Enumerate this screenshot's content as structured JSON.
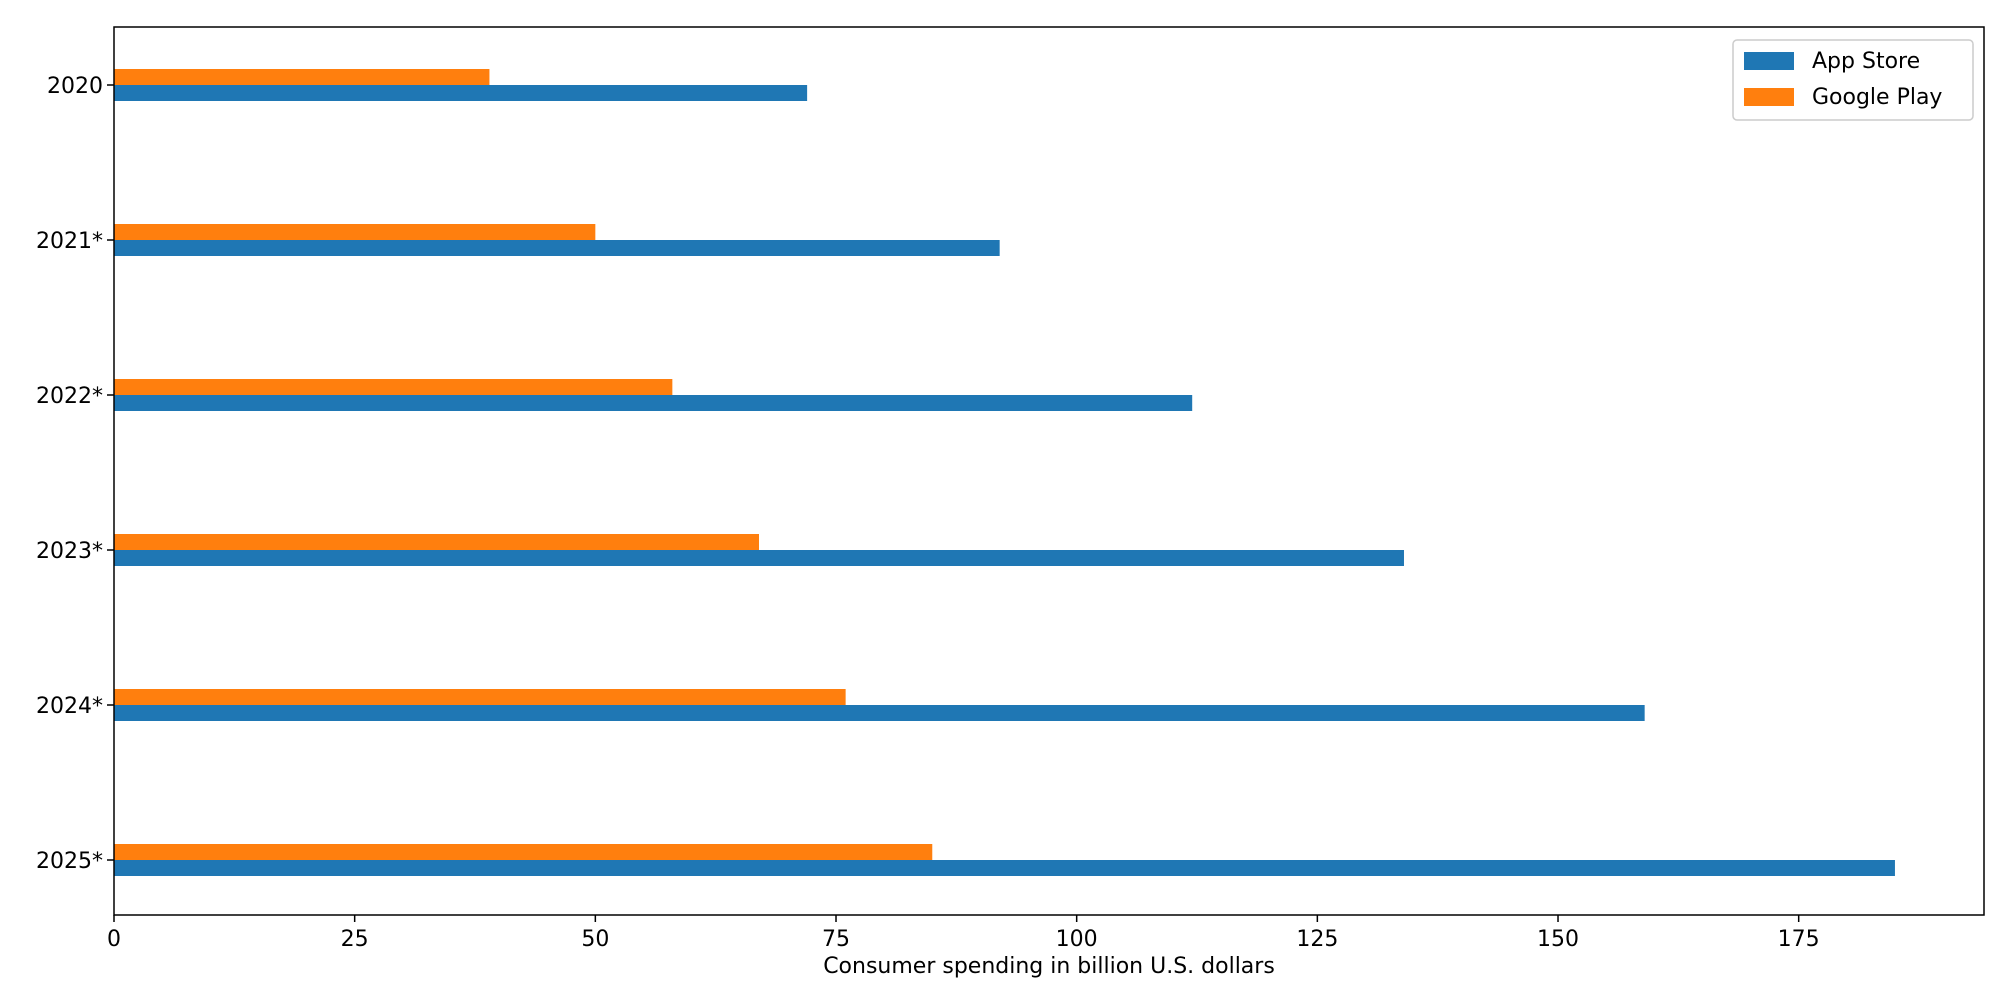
{
  "chart_data": {
    "type": "bar",
    "orientation": "horizontal",
    "title": "",
    "xlabel": "Consumer spending in billion U.S. dollars",
    "ylabel": "",
    "categories": [
      "2020",
      "2021*",
      "2022*",
      "2023*",
      "2024*",
      "2025*"
    ],
    "series": [
      {
        "name": "App Store",
        "color": "#1f77b4",
        "values": [
          72,
          92,
          112,
          134,
          159,
          185
        ]
      },
      {
        "name": "Google Play",
        "color": "#ff7f0e",
        "values": [
          39,
          50,
          58,
          67,
          76,
          85
        ]
      }
    ],
    "xlim": [
      0,
      194.25
    ],
    "x_ticks": [
      0,
      25,
      50,
      75,
      100,
      125,
      150,
      175
    ],
    "grid": false,
    "legend_position": "top-right"
  }
}
